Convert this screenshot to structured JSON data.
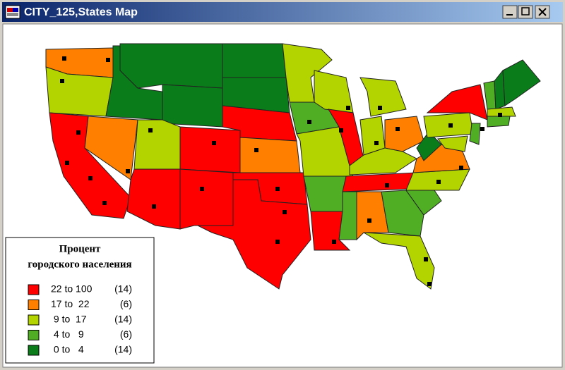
{
  "window": {
    "title": "CITY_125,States Map"
  },
  "legend": {
    "title_lines": [
      "Процент",
      "городского населения"
    ],
    "items": [
      {
        "range": "22 to 100",
        "count": "(14)",
        "color": "#ff0000"
      },
      {
        "range": "17 to  22",
        "count": "(6)",
        "color": "#ff8000"
      },
      {
        "range": " 9 to  17",
        "count": "(14)",
        "color": "#b4d400"
      },
      {
        "range": " 4 to   9",
        "count": "(6)",
        "color": "#4fae24"
      },
      {
        "range": " 0 to   4",
        "count": "(14)",
        "color": "#0a7c1a"
      }
    ]
  }
}
